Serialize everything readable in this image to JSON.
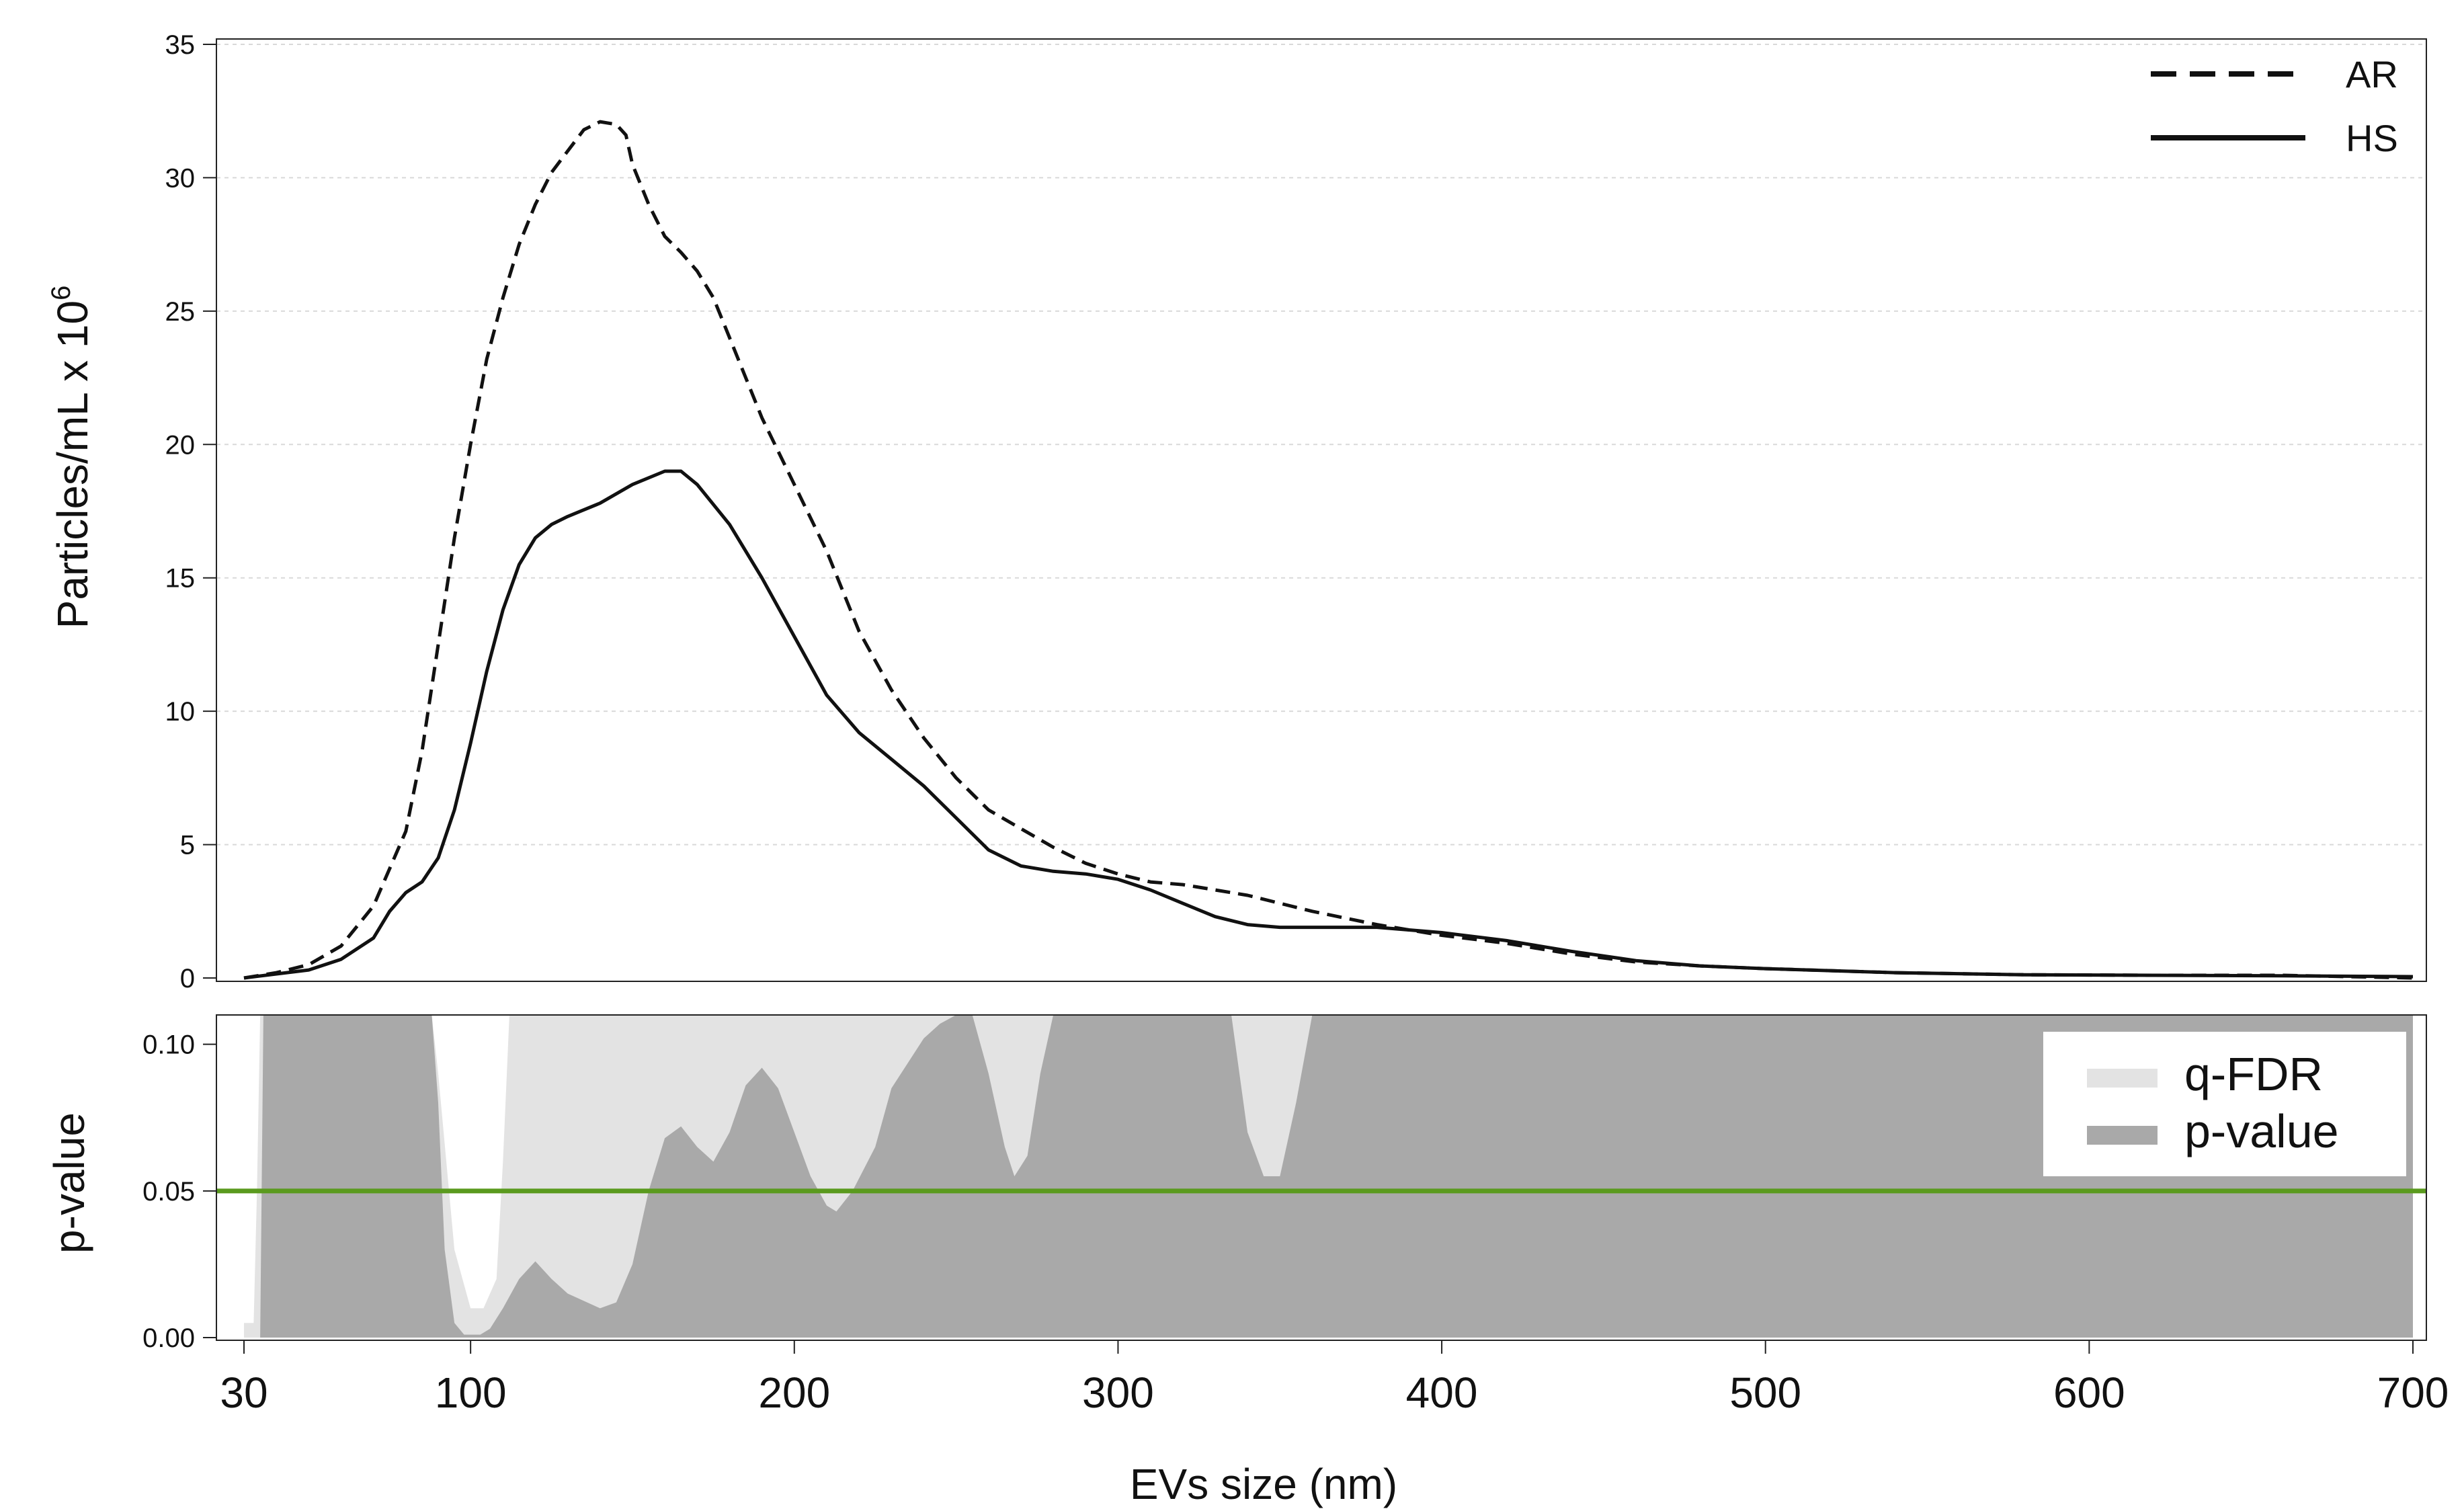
{
  "chart_data": {
    "top": {
      "type": "line",
      "xlabel": "",
      "ylabel": "Particles/mL x 10",
      "ylabel_superscript": "6",
      "xlim": [
        25,
        705
      ],
      "ylim": [
        0,
        35
      ],
      "yticks": [
        "0",
        "5",
        "10",
        "15",
        "20",
        "25",
        "30",
        "35"
      ],
      "grid": true,
      "legend_position": "top-right",
      "series": [
        {
          "name": "AR",
          "style": "dashed",
          "x": [
            30,
            40,
            50,
            60,
            70,
            80,
            85,
            90,
            95,
            100,
            105,
            110,
            115,
            120,
            125,
            130,
            135,
            140,
            145,
            148,
            150,
            155,
            160,
            165,
            170,
            175,
            180,
            190,
            200,
            210,
            220,
            230,
            240,
            250,
            260,
            270,
            280,
            290,
            300,
            310,
            320,
            330,
            340,
            350,
            360,
            380,
            400,
            420,
            440,
            460,
            480,
            500,
            540,
            580,
            620,
            660,
            700
          ],
          "values": [
            0.0,
            0.2,
            0.5,
            1.2,
            2.7,
            5.5,
            8.5,
            12.5,
            16.5,
            20.0,
            23.2,
            25.5,
            27.5,
            29.0,
            30.2,
            31.0,
            31.8,
            32.1,
            32.0,
            31.6,
            30.5,
            29.0,
            27.8,
            27.2,
            26.5,
            25.5,
            24.0,
            21.0,
            18.5,
            16.0,
            13.0,
            10.8,
            9.0,
            7.5,
            6.3,
            5.6,
            4.9,
            4.3,
            3.9,
            3.6,
            3.5,
            3.3,
            3.1,
            2.8,
            2.5,
            2.0,
            1.6,
            1.3,
            0.9,
            0.6,
            0.45,
            0.35,
            0.2,
            0.12,
            0.1,
            0.1,
            0.0
          ]
        },
        {
          "name": "HS",
          "style": "solid",
          "x": [
            30,
            40,
            50,
            60,
            70,
            75,
            80,
            85,
            90,
            95,
            100,
            105,
            110,
            115,
            120,
            125,
            130,
            140,
            150,
            160,
            165,
            170,
            180,
            190,
            200,
            210,
            220,
            230,
            240,
            250,
            260,
            270,
            280,
            290,
            300,
            310,
            320,
            330,
            340,
            350,
            360,
            370,
            380,
            400,
            420,
            440,
            460,
            480,
            500,
            540,
            580,
            620,
            660,
            700
          ],
          "values": [
            0.0,
            0.15,
            0.3,
            0.7,
            1.5,
            2.5,
            3.2,
            3.6,
            4.5,
            6.3,
            8.8,
            11.5,
            13.8,
            15.5,
            16.5,
            17.0,
            17.3,
            17.8,
            18.5,
            19.0,
            19.0,
            18.5,
            17.0,
            15.0,
            12.8,
            10.6,
            9.2,
            8.2,
            7.2,
            6.0,
            4.8,
            4.2,
            4.0,
            3.9,
            3.7,
            3.3,
            2.8,
            2.3,
            2.0,
            1.9,
            1.9,
            1.9,
            1.9,
            1.7,
            1.4,
            1.0,
            0.65,
            0.45,
            0.35,
            0.2,
            0.12,
            0.1,
            0.08,
            0.05
          ]
        }
      ]
    },
    "bottom": {
      "type": "area",
      "xlabel": "EVs size (nm)",
      "ylabel": "p-value",
      "xlim": [
        25,
        705
      ],
      "ylim": [
        0,
        0.11
      ],
      "xticks": [
        "30",
        "100",
        "200",
        "300",
        "400",
        "500",
        "600",
        "700"
      ],
      "yticks": [
        "0.00",
        "0.05",
        "0.10"
      ],
      "threshold": 0.05,
      "threshold_color": "#5a9a1e",
      "legend_position": "top-right",
      "series": [
        {
          "name": "q-FDR",
          "color": "#e3e3e3",
          "x": [
            30,
            33,
            34,
            35,
            36,
            88,
            90,
            95,
            100,
            104,
            108,
            110,
            112,
            700
          ],
          "values": [
            0.005,
            0.005,
            0.05,
            0.11,
            0.11,
            0.11,
            0.09,
            0.03,
            0.01,
            0.01,
            0.02,
            0.06,
            0.11,
            0.11
          ]
        },
        {
          "name": "p-value",
          "color": "#a9a9a9",
          "x": [
            30,
            35,
            36,
            37,
            88,
            90,
            92,
            95,
            98,
            100,
            103,
            106,
            110,
            115,
            120,
            125,
            130,
            140,
            145,
            150,
            155,
            160,
            165,
            170,
            175,
            180,
            185,
            190,
            195,
            200,
            205,
            210,
            213,
            218,
            225,
            230,
            240,
            245,
            250,
            255,
            260,
            265,
            268,
            272,
            276,
            280,
            335,
            340,
            345,
            350,
            355,
            360,
            700
          ],
          "values": [
            0.0,
            0.0,
            0.11,
            0.11,
            0.11,
            0.08,
            0.03,
            0.005,
            0.001,
            0.001,
            0.001,
            0.003,
            0.01,
            0.02,
            0.026,
            0.02,
            0.015,
            0.01,
            0.012,
            0.025,
            0.05,
            0.068,
            0.072,
            0.065,
            0.06,
            0.07,
            0.086,
            0.092,
            0.085,
            0.07,
            0.055,
            0.045,
            0.043,
            0.05,
            0.065,
            0.085,
            0.102,
            0.107,
            0.11,
            0.11,
            0.09,
            0.065,
            0.055,
            0.062,
            0.09,
            0.11,
            0.11,
            0.07,
            0.055,
            0.055,
            0.08,
            0.11,
            0.11
          ]
        }
      ]
    }
  }
}
